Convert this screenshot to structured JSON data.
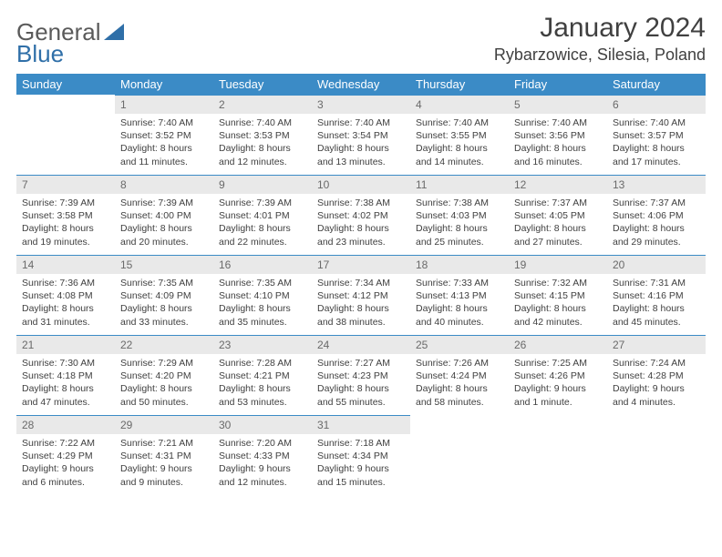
{
  "brand": {
    "part1": "General",
    "part2": "Blue",
    "tri_color": "#2f6fa8"
  },
  "title": "January 2024",
  "location": "Rybarzowice, Silesia, Poland",
  "colors": {
    "header_bg": "#3b8bc6",
    "header_fg": "#ffffff",
    "daynum_bg": "#e9e9e9",
    "daynum_fg": "#6a6a6a",
    "rule": "#3b8bc6",
    "text": "#404040"
  },
  "weekdays": [
    "Sunday",
    "Monday",
    "Tuesday",
    "Wednesday",
    "Thursday",
    "Friday",
    "Saturday"
  ],
  "weeks": [
    [
      null,
      {
        "d": "1",
        "sr": "7:40 AM",
        "ss": "3:52 PM",
        "dl": "8 hours and 11 minutes."
      },
      {
        "d": "2",
        "sr": "7:40 AM",
        "ss": "3:53 PM",
        "dl": "8 hours and 12 minutes."
      },
      {
        "d": "3",
        "sr": "7:40 AM",
        "ss": "3:54 PM",
        "dl": "8 hours and 13 minutes."
      },
      {
        "d": "4",
        "sr": "7:40 AM",
        "ss": "3:55 PM",
        "dl": "8 hours and 14 minutes."
      },
      {
        "d": "5",
        "sr": "7:40 AM",
        "ss": "3:56 PM",
        "dl": "8 hours and 16 minutes."
      },
      {
        "d": "6",
        "sr": "7:40 AM",
        "ss": "3:57 PM",
        "dl": "8 hours and 17 minutes."
      }
    ],
    [
      {
        "d": "7",
        "sr": "7:39 AM",
        "ss": "3:58 PM",
        "dl": "8 hours and 19 minutes."
      },
      {
        "d": "8",
        "sr": "7:39 AM",
        "ss": "4:00 PM",
        "dl": "8 hours and 20 minutes."
      },
      {
        "d": "9",
        "sr": "7:39 AM",
        "ss": "4:01 PM",
        "dl": "8 hours and 22 minutes."
      },
      {
        "d": "10",
        "sr": "7:38 AM",
        "ss": "4:02 PM",
        "dl": "8 hours and 23 minutes."
      },
      {
        "d": "11",
        "sr": "7:38 AM",
        "ss": "4:03 PM",
        "dl": "8 hours and 25 minutes."
      },
      {
        "d": "12",
        "sr": "7:37 AM",
        "ss": "4:05 PM",
        "dl": "8 hours and 27 minutes."
      },
      {
        "d": "13",
        "sr": "7:37 AM",
        "ss": "4:06 PM",
        "dl": "8 hours and 29 minutes."
      }
    ],
    [
      {
        "d": "14",
        "sr": "7:36 AM",
        "ss": "4:08 PM",
        "dl": "8 hours and 31 minutes."
      },
      {
        "d": "15",
        "sr": "7:35 AM",
        "ss": "4:09 PM",
        "dl": "8 hours and 33 minutes."
      },
      {
        "d": "16",
        "sr": "7:35 AM",
        "ss": "4:10 PM",
        "dl": "8 hours and 35 minutes."
      },
      {
        "d": "17",
        "sr": "7:34 AM",
        "ss": "4:12 PM",
        "dl": "8 hours and 38 minutes."
      },
      {
        "d": "18",
        "sr": "7:33 AM",
        "ss": "4:13 PM",
        "dl": "8 hours and 40 minutes."
      },
      {
        "d": "19",
        "sr": "7:32 AM",
        "ss": "4:15 PM",
        "dl": "8 hours and 42 minutes."
      },
      {
        "d": "20",
        "sr": "7:31 AM",
        "ss": "4:16 PM",
        "dl": "8 hours and 45 minutes."
      }
    ],
    [
      {
        "d": "21",
        "sr": "7:30 AM",
        "ss": "4:18 PM",
        "dl": "8 hours and 47 minutes."
      },
      {
        "d": "22",
        "sr": "7:29 AM",
        "ss": "4:20 PM",
        "dl": "8 hours and 50 minutes."
      },
      {
        "d": "23",
        "sr": "7:28 AM",
        "ss": "4:21 PM",
        "dl": "8 hours and 53 minutes."
      },
      {
        "d": "24",
        "sr": "7:27 AM",
        "ss": "4:23 PM",
        "dl": "8 hours and 55 minutes."
      },
      {
        "d": "25",
        "sr": "7:26 AM",
        "ss": "4:24 PM",
        "dl": "8 hours and 58 minutes."
      },
      {
        "d": "26",
        "sr": "7:25 AM",
        "ss": "4:26 PM",
        "dl": "9 hours and 1 minute."
      },
      {
        "d": "27",
        "sr": "7:24 AM",
        "ss": "4:28 PM",
        "dl": "9 hours and 4 minutes."
      }
    ],
    [
      {
        "d": "28",
        "sr": "7:22 AM",
        "ss": "4:29 PM",
        "dl": "9 hours and 6 minutes."
      },
      {
        "d": "29",
        "sr": "7:21 AM",
        "ss": "4:31 PM",
        "dl": "9 hours and 9 minutes."
      },
      {
        "d": "30",
        "sr": "7:20 AM",
        "ss": "4:33 PM",
        "dl": "9 hours and 12 minutes."
      },
      {
        "d": "31",
        "sr": "7:18 AM",
        "ss": "4:34 PM",
        "dl": "9 hours and 15 minutes."
      },
      null,
      null,
      null
    ]
  ],
  "labels": {
    "sunrise": "Sunrise:",
    "sunset": "Sunset:",
    "daylight": "Daylight:"
  }
}
